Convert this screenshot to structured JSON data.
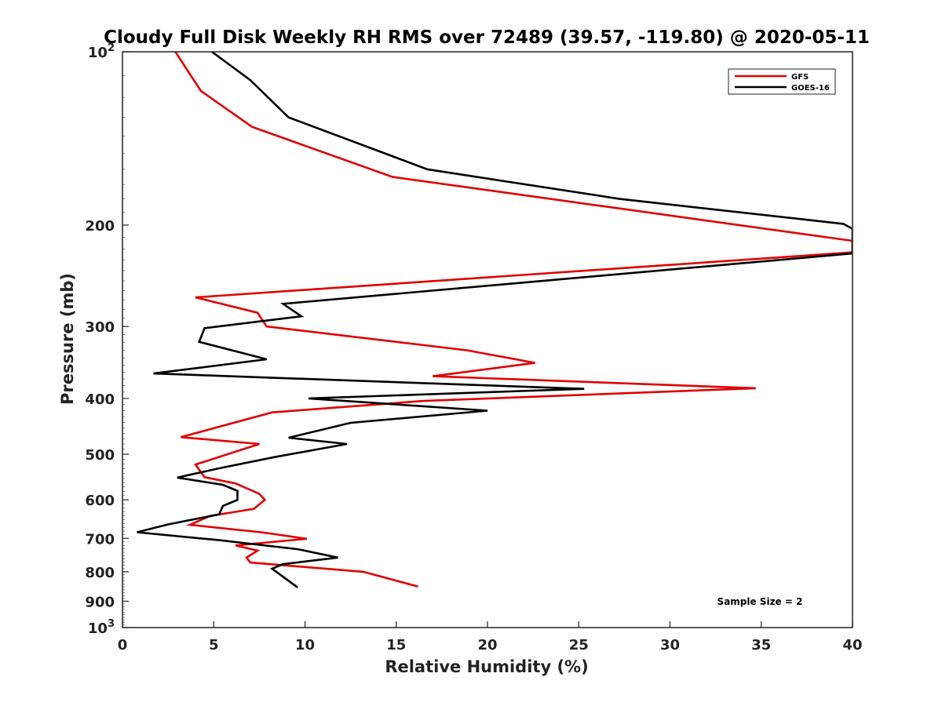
{
  "chart_data": {
    "type": "line",
    "title": "Cloudy Full Disk Weekly RH RMS over 72489 (39.57, -119.80) @ 2020-05-11",
    "xlabel": "Relative Humidity (%)",
    "ylabel": "Pressure (mb)",
    "xlim": [
      0,
      40
    ],
    "ylim": [
      1000,
      100
    ],
    "yscale": "log",
    "grid": false,
    "legend_position": "top-right",
    "x_ticks": [
      {
        "value": 0,
        "label": "0"
      },
      {
        "value": 5,
        "label": "5"
      },
      {
        "value": 10,
        "label": "10"
      },
      {
        "value": 15,
        "label": "15"
      },
      {
        "value": 20,
        "label": "20"
      },
      {
        "value": 25,
        "label": "25"
      },
      {
        "value": 30,
        "label": "30"
      },
      {
        "value": 35,
        "label": "35"
      },
      {
        "value": 40,
        "label": "40"
      }
    ],
    "y_ticks": [
      {
        "value": 100,
        "label": "10",
        "sup": "2"
      },
      {
        "value": 200,
        "label": "200",
        "sup": ""
      },
      {
        "value": 300,
        "label": "300",
        "sup": ""
      },
      {
        "value": 400,
        "label": "400",
        "sup": ""
      },
      {
        "value": 500,
        "label": "500",
        "sup": ""
      },
      {
        "value": 600,
        "label": "600",
        "sup": ""
      },
      {
        "value": 700,
        "label": "700",
        "sup": ""
      },
      {
        "value": 800,
        "label": "800",
        "sup": ""
      },
      {
        "value": 900,
        "label": "900",
        "sup": ""
      },
      {
        "value": 1000,
        "label": "10",
        "sup": "3"
      }
    ],
    "series": [
      {
        "name": "GFS",
        "color": "#e00000",
        "points": [
          [
            2.9,
            100
          ],
          [
            4.3,
            117
          ],
          [
            7.1,
            135
          ],
          [
            14.8,
            165
          ],
          [
            40,
            213
          ],
          [
            40,
            223
          ],
          [
            4.0,
            267
          ],
          [
            7.4,
            284
          ],
          [
            7.9,
            300
          ],
          [
            18.9,
            330
          ],
          [
            22.6,
            347
          ],
          [
            17.0,
            366
          ],
          [
            34.7,
            384
          ],
          [
            16.5,
            404
          ],
          [
            8.2,
            423
          ],
          [
            3.2,
            467
          ],
          [
            7.5,
            480
          ],
          [
            4.0,
            521
          ],
          [
            4.5,
            548
          ],
          [
            6.2,
            562
          ],
          [
            7.5,
            586
          ],
          [
            7.8,
            600
          ],
          [
            7.2,
            622
          ],
          [
            4.8,
            640
          ],
          [
            3.7,
            663
          ],
          [
            7.6,
            683
          ],
          [
            10.1,
            701
          ],
          [
            6.2,
            720
          ],
          [
            7.4,
            735
          ],
          [
            6.8,
            756
          ],
          [
            7.0,
            771
          ],
          [
            13.2,
            800
          ],
          [
            16.2,
            849
          ]
        ]
      },
      {
        "name": "GOES-16",
        "color": "#000000",
        "points": [
          [
            4.9,
            100
          ],
          [
            7.0,
            112
          ],
          [
            9.1,
            130
          ],
          [
            16.7,
            160
          ],
          [
            27.2,
            180
          ],
          [
            39.5,
            199
          ],
          [
            40,
            203
          ],
          [
            40,
            224
          ],
          [
            8.8,
            274
          ],
          [
            9.8,
            288
          ],
          [
            4.5,
            302
          ],
          [
            4.2,
            319
          ],
          [
            7.9,
            342
          ],
          [
            1.7,
            362
          ],
          [
            25.3,
            385
          ],
          [
            10.2,
            400
          ],
          [
            20.0,
            420
          ],
          [
            12.5,
            441
          ],
          [
            9.1,
            468
          ],
          [
            12.3,
            480
          ],
          [
            8.3,
            506
          ],
          [
            5.3,
            529
          ],
          [
            3.0,
            549
          ],
          [
            5.5,
            565
          ],
          [
            6.3,
            579
          ],
          [
            6.3,
            600
          ],
          [
            5.5,
            615
          ],
          [
            5.3,
            636
          ],
          [
            2.5,
            662
          ],
          [
            0.8,
            683
          ],
          [
            5.3,
            705
          ],
          [
            9.6,
            731
          ],
          [
            11.8,
            756
          ],
          [
            8.8,
            776
          ],
          [
            8.2,
            790
          ],
          [
            9.6,
            852
          ]
        ]
      }
    ],
    "annotation": "Sample Size = 2"
  }
}
